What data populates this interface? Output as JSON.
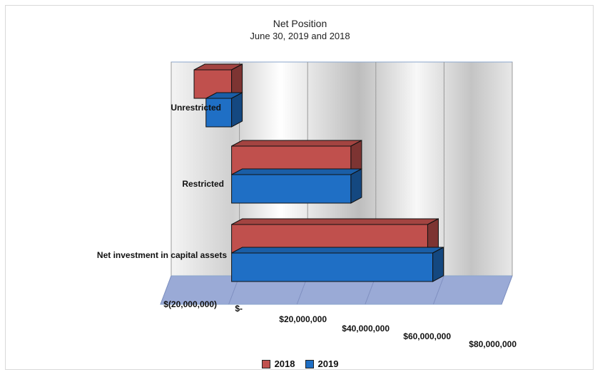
{
  "chart_data": {
    "type": "bar",
    "orientation": "horizontal",
    "style": "3d",
    "title": "Net Position",
    "subtitle": "June 30, 2019 and 2018",
    "categories": [
      "Unrestricted",
      "Restricted",
      "Net investment in capital assets"
    ],
    "series": [
      {
        "name": "2018",
        "color": "#c0504d",
        "values": [
          -11000000,
          35000000,
          57500000
        ]
      },
      {
        "name": "2019",
        "color": "#1f6fc5",
        "values": [
          -7500000,
          35000000,
          59000000
        ]
      }
    ],
    "xlim": [
      -20000000,
      80000000
    ],
    "tick_labels": [
      "$(20,000,000)",
      "$-",
      "$20,000,000",
      "$40,000,000",
      "$60,000,000",
      "$80,000,000"
    ],
    "grid": true,
    "legend": "bottom"
  }
}
